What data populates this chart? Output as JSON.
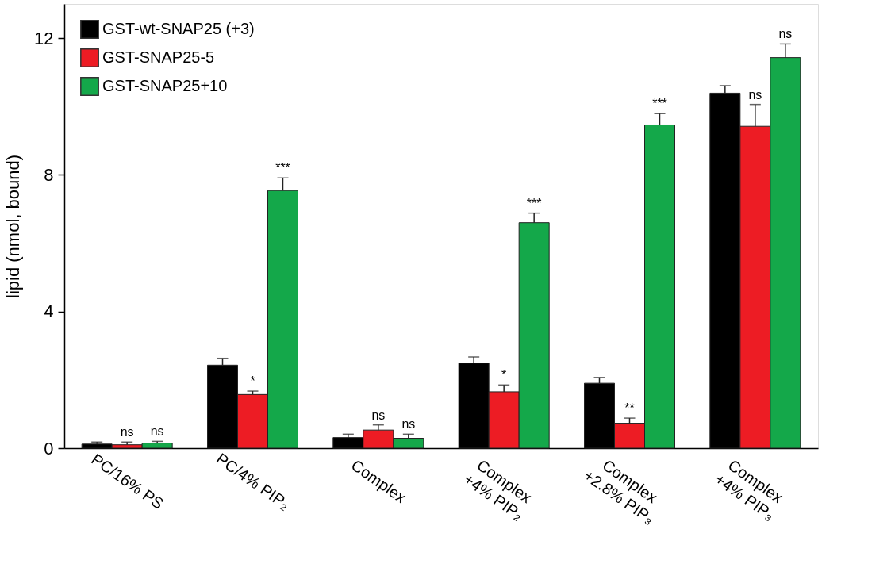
{
  "chart_data": {
    "type": "bar",
    "ylabel": "lipid (nmol, bound)",
    "categories": [
      "PC/16% PS",
      "PC/4% PIP₂",
      "Complex",
      "Complex\n+4% PIP₂",
      "Complex\n+2.8% PIP₃",
      "Complex\n+4% PIP₃"
    ],
    "series": [
      {
        "name": "GST-wt-SNAP25 (+3)",
        "color": "#000000",
        "values": [
          0.12,
          2.43,
          0.31,
          2.49,
          1.9,
          10.39
        ],
        "errors": [
          0.06,
          0.2,
          0.1,
          0.18,
          0.17,
          0.22
        ]
      },
      {
        "name": "GST-SNAP25-5",
        "color": "#ed1c24",
        "values": [
          0.1,
          1.57,
          0.53,
          1.65,
          0.73,
          9.42
        ],
        "errors": [
          0.08,
          0.1,
          0.15,
          0.2,
          0.15,
          0.64
        ],
        "value_labels": [
          "ns",
          "*",
          "ns",
          "*",
          "**",
          "ns"
        ]
      },
      {
        "name": "GST-SNAP25+10",
        "color": "#14a84a",
        "values": [
          0.15,
          7.54,
          0.29,
          6.6,
          9.46,
          11.43
        ],
        "errors": [
          0.05,
          0.37,
          0.12,
          0.28,
          0.33,
          0.4
        ],
        "value_labels": [
          "ns",
          "***",
          "ns",
          "***",
          "***",
          "ns"
        ]
      }
    ],
    "ylim": [
      0,
      13
    ],
    "yticks": [
      0,
      4,
      8,
      12
    ],
    "grid": false,
    "legend": "top left"
  }
}
